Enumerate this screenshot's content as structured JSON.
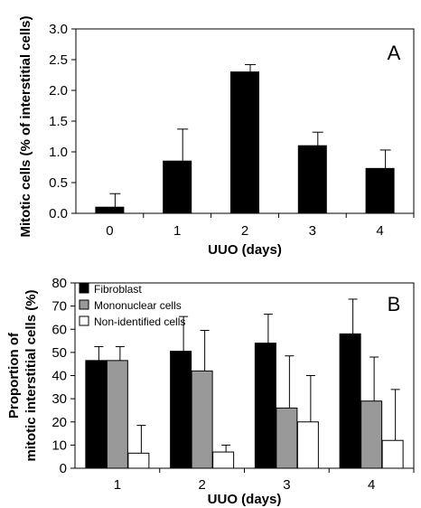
{
  "chart_data": [
    {
      "type": "bar",
      "panel_label": "A",
      "categories": [
        "0",
        "1",
        "2",
        "3",
        "4"
      ],
      "values": [
        0.1,
        0.85,
        2.3,
        1.1,
        0.73
      ],
      "errors": [
        0.22,
        0.52,
        0.12,
        0.22,
        0.3
      ],
      "xlabel": "UUO (days)",
      "ylabel": "Mitotic cells (% of interstitial cells)",
      "ylim": [
        0,
        3.0
      ],
      "yticks": [
        "0.0",
        "0.5",
        "1.0",
        "1.5",
        "2.0",
        "2.5",
        "3.0"
      ],
      "grid": false,
      "bar_color": "#000000"
    },
    {
      "type": "bar",
      "panel_label": "B",
      "categories": [
        "1",
        "2",
        "3",
        "4"
      ],
      "series": [
        {
          "name": "Fibroblast",
          "color": "#000000",
          "values": [
            46.5,
            50.5,
            54,
            58
          ],
          "errors": [
            6,
            15,
            12.5,
            15
          ]
        },
        {
          "name": "Mononuclear cells",
          "color": "#999999",
          "values": [
            46.5,
            42,
            26,
            29
          ],
          "errors": [
            6,
            17.5,
            22.5,
            19
          ]
        },
        {
          "name": "Non-identified cells",
          "color": "#ffffff",
          "values": [
            6.5,
            7,
            20,
            12
          ],
          "errors": [
            12,
            3,
            20,
            22
          ]
        }
      ],
      "xlabel": "UUO (days)",
      "ylabel_lines": [
        "Proportion of",
        "mitotic interstitial cells (%)"
      ],
      "ylim": [
        0,
        80
      ],
      "yticks": [
        "0",
        "10",
        "20",
        "30",
        "40",
        "50",
        "60",
        "70",
        "80"
      ],
      "grid": false,
      "legend_position": "top-left"
    }
  ]
}
